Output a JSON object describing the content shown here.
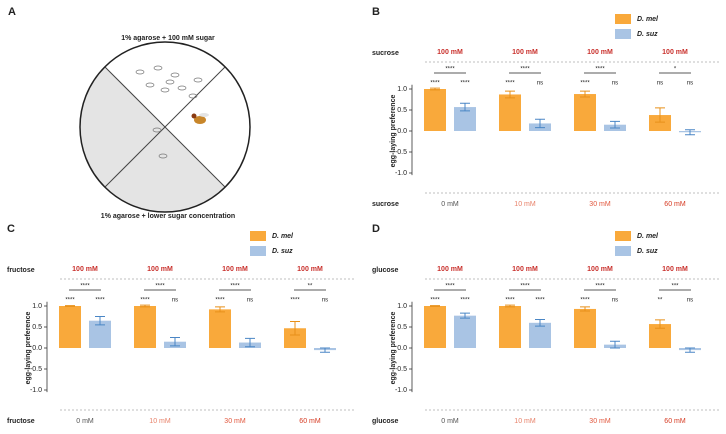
{
  "diagram": {
    "label": "A",
    "top_text": "1% agarose + 100 mM sugar",
    "bottom_text": "1% agarose + lower sugar concentration"
  },
  "chart_data": [
    {
      "type": "bar",
      "panel": "B",
      "top_label": "sucrose",
      "top_categories": [
        "100 mM",
        "100 mM",
        "100 mM",
        "100 mM"
      ],
      "bottom_label": "sucrose",
      "categories": [
        "0 mM",
        "10 mM",
        "30 mM",
        "60 mM"
      ],
      "category_colors": [
        "#555555",
        "#e8826a",
        "#e2583e",
        "#d63a22"
      ],
      "top_color": "#c9302c",
      "y_label": "egg-laying preference",
      "ylim": [
        -1.05,
        1.1
      ],
      "yticks": [
        {
          "value": -1,
          "label": "-1.0"
        },
        {
          "value": -0.5,
          "label": "-0.5"
        },
        {
          "value": 0,
          "label": "0.0"
        },
        {
          "value": 0.5,
          "label": "0.5"
        },
        {
          "value": 1,
          "label": "1.0"
        }
      ],
      "series": [
        {
          "name": "D. mel",
          "color": "#f9a93b",
          "values": [
            1.0,
            0.87,
            0.88,
            0.38
          ],
          "errors": [
            0.02,
            0.08,
            0.07,
            0.17
          ],
          "significance": [
            "****",
            "****",
            "****",
            "ns"
          ]
        },
        {
          "name": "D. suz",
          "color": "#a9c4e4",
          "values": [
            0.57,
            0.18,
            0.15,
            -0.03
          ],
          "errors": [
            0.09,
            0.1,
            0.08,
            0.06
          ],
          "significance": [
            "****",
            "ns",
            "ns",
            "ns"
          ]
        }
      ],
      "comparisons": [
        "****",
        "****",
        "****",
        "*"
      ]
    },
    {
      "type": "bar",
      "panel": "C",
      "top_label": "fructose",
      "top_categories": [
        "100 mM",
        "100 mM",
        "100 mM",
        "100 mM"
      ],
      "bottom_label": "fructose",
      "categories": [
        "0 mM",
        "10 mM",
        "30 mM",
        "60 mM"
      ],
      "category_colors": [
        "#555555",
        "#e8826a",
        "#e2583e",
        "#d63a22"
      ],
      "top_color": "#c9302c",
      "y_label": "egg-laying preference",
      "ylim": [
        -1.05,
        1.1
      ],
      "yticks": [
        {
          "value": -1,
          "label": "-1.0"
        },
        {
          "value": -0.5,
          "label": "-0.5"
        },
        {
          "value": 0,
          "label": "0.0"
        },
        {
          "value": 0.5,
          "label": "0.5"
        },
        {
          "value": 1,
          "label": "1.0"
        }
      ],
      "series": [
        {
          "name": "D. mel",
          "color": "#f9a93b",
          "values": [
            1.0,
            1.0,
            0.92,
            0.47
          ],
          "errors": [
            0.01,
            0.02,
            0.06,
            0.16
          ],
          "significance": [
            "****",
            "****",
            "****",
            "****"
          ]
        },
        {
          "name": "D. suz",
          "color": "#a9c4e4",
          "values": [
            0.65,
            0.15,
            0.13,
            -0.05
          ],
          "errors": [
            0.1,
            0.1,
            0.1,
            0.05
          ],
          "significance": [
            "****",
            "ns",
            "ns",
            "ns"
          ]
        }
      ],
      "comparisons": [
        "****",
        "****",
        "****",
        "**"
      ]
    },
    {
      "type": "bar",
      "panel": "D",
      "top_label": "glucose",
      "top_categories": [
        "100 mM",
        "100 mM",
        "100 mM",
        "100 mM"
      ],
      "bottom_label": "glucose",
      "categories": [
        "0 mM",
        "10 mM",
        "30 mM",
        "60 mM"
      ],
      "category_colors": [
        "#555555",
        "#e8826a",
        "#e2583e",
        "#d63a22"
      ],
      "top_color": "#c9302c",
      "y_label": "egg-laying preference",
      "ylim": [
        -1.05,
        1.1
      ],
      "yticks": [
        {
          "value": -1,
          "label": "-1.0"
        },
        {
          "value": -0.5,
          "label": "-0.5"
        },
        {
          "value": 0,
          "label": "0.0"
        },
        {
          "value": 0.5,
          "label": "0.5"
        },
        {
          "value": 1,
          "label": "1.0"
        }
      ],
      "series": [
        {
          "name": "D. mel",
          "color": "#f9a93b",
          "values": [
            1.0,
            1.0,
            0.93,
            0.57
          ],
          "errors": [
            0.01,
            0.02,
            0.05,
            0.1
          ],
          "significance": [
            "****",
            "****",
            "****",
            "**"
          ]
        },
        {
          "name": "D. suz",
          "color": "#a9c4e4",
          "values": [
            0.77,
            0.6,
            0.08,
            -0.05
          ],
          "errors": [
            0.06,
            0.08,
            0.08,
            0.05
          ],
          "significance": [
            "****",
            "****",
            "ns",
            "ns"
          ]
        }
      ],
      "comparisons": [
        "****",
        "****",
        "****",
        "***"
      ]
    }
  ]
}
